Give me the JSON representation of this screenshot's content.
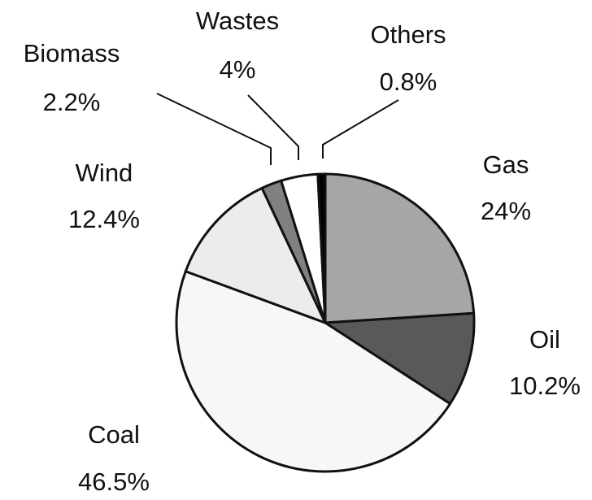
{
  "chart_data": {
    "type": "pie",
    "categories": [
      "Gas",
      "Oil",
      "Coal",
      "Wind",
      "Biomass",
      "Wastes",
      "Others"
    ],
    "values": [
      24,
      10.2,
      46.5,
      12.4,
      2.2,
      4,
      0.8
    ],
    "value_labels": [
      "24%",
      "10.2%",
      "46.5%",
      "12.4%",
      "2.2%",
      "4%",
      "0.8%"
    ],
    "colors": [
      "#a6a6a6",
      "#595959",
      "#f7f7f7",
      "#ececec",
      "#808080",
      "#ffffff",
      "#000000"
    ]
  }
}
